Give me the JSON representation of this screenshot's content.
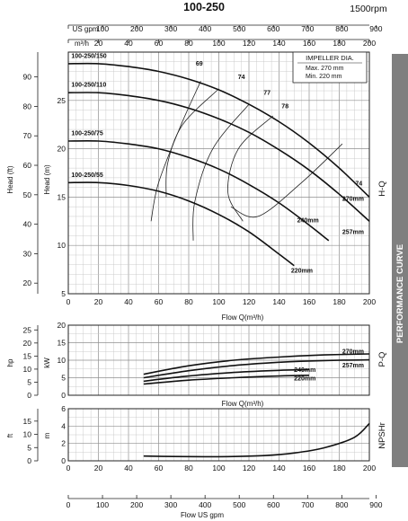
{
  "header": {
    "title": "100-250",
    "speed": "1500rpm"
  },
  "side": {
    "banner": "PERFORMANCE CURVE",
    "hq": "H-Q",
    "pq": "P-Q",
    "npshr": "NPSHr"
  },
  "impeller_box": {
    "title": "IMPELLER DIA.",
    "max": "Max.  270 mm",
    "min": "Min.  220 mm"
  },
  "chart_data": [
    {
      "type": "line",
      "title": "H-Q",
      "x": {
        "label": "Flow  Q(m³/h)",
        "range": [
          0,
          200
        ],
        "ticks": [
          0,
          20,
          40,
          60,
          80,
          100,
          120,
          140,
          160,
          180,
          200
        ]
      },
      "y": {
        "label": "Head (m)",
        "range": [
          5,
          30
        ],
        "ticks": [
          5,
          10,
          15,
          20,
          25
        ]
      },
      "series": [
        {
          "name": "270mm",
          "x": [
            0,
            20,
            40,
            60,
            80,
            100,
            120,
            140,
            160,
            180,
            200
          ],
          "y": [
            28.8,
            28.8,
            28.5,
            28.0,
            27.2,
            26.1,
            24.6,
            22.8,
            20.6,
            18.0,
            15.0
          ]
        },
        {
          "name": "257mm",
          "x": [
            0,
            20,
            40,
            60,
            80,
            100,
            120,
            140,
            160,
            180,
            200
          ],
          "y": [
            25.8,
            25.8,
            25.5,
            25.0,
            24.2,
            23.1,
            21.7,
            19.9,
            17.8,
            15.3,
            12.5
          ]
        },
        {
          "name": "240mm",
          "x": [
            0,
            20,
            40,
            60,
            80,
            100,
            120,
            140,
            160,
            173
          ],
          "y": [
            20.8,
            20.8,
            20.5,
            20.0,
            19.1,
            17.9,
            16.3,
            14.4,
            12.1,
            10.5
          ]
        },
        {
          "name": "220mm",
          "x": [
            0,
            20,
            40,
            60,
            80,
            100,
            120,
            140,
            150
          ],
          "y": [
            16.5,
            16.5,
            16.2,
            15.6,
            14.6,
            13.2,
            11.4,
            9.1,
            7.9
          ]
        }
      ],
      "curve_labels": [
        {
          "text": "100-250/150",
          "x": 2,
          "y": 29.4
        },
        {
          "text": "100-250/110",
          "x": 2,
          "y": 26.4
        },
        {
          "text": "100-250/75",
          "x": 2,
          "y": 21.4
        },
        {
          "text": "100-250/55",
          "x": 2,
          "y": 17.1
        },
        {
          "text": "270mm",
          "x": 182,
          "y": 14.6
        },
        {
          "text": "257mm",
          "x": 182,
          "y": 11.2
        },
        {
          "text": "240mm",
          "x": 152,
          "y": 12.4
        },
        {
          "text": "220mm",
          "x": 148,
          "y": 7.2
        }
      ],
      "efficiency_contours": [
        {
          "label": "69",
          "points": [
            [
              55,
              12.5
            ],
            [
              60,
              16.5
            ],
            [
              75,
              22.5
            ],
            [
              88,
              27
            ]
          ],
          "label_at": [
            87,
            28.6
          ]
        },
        {
          "label": "74",
          "points": [
            [
              65,
              15
            ],
            [
              66,
              18.5
            ],
            [
              76,
              22.5
            ],
            [
              100,
              26.2
            ]
          ],
          "label_at": [
            115,
            27.2
          ]
        },
        {
          "label": "77",
          "points": [
            [
              83,
              10.5
            ],
            [
              84,
              14.5
            ],
            [
              96,
              20
            ],
            [
              120,
              24.6
            ]
          ],
          "label_at": [
            132,
            25.6
          ]
        },
        {
          "label": "78",
          "points": [
            [
              116,
              12.5
            ],
            [
              106,
              15.5
            ],
            [
              113,
              20
            ],
            [
              136,
              23.4
            ]
          ],
          "label_at": [
            144,
            24.2
          ]
        },
        {
          "label": "74",
          "points": [
            [
              108,
              14
            ],
            [
              126,
              13
            ],
            [
              155,
              16.5
            ],
            [
              182,
              20.5
            ]
          ],
          "label_at": [
            193,
            16.2
          ]
        }
      ],
      "secondary_axes": {
        "head_ft": {
          "ticks": [
            20,
            30,
            40,
            50,
            60,
            70,
            80,
            90
          ]
        },
        "flow_m3h_top": {
          "ticks": [
            0,
            20,
            40,
            60,
            80,
            100,
            120,
            140,
            160,
            180,
            200
          ]
        },
        "flow_gpm_top": {
          "ticks": [
            0,
            100,
            200,
            300,
            400,
            500,
            600,
            700,
            800,
            900
          ]
        }
      }
    },
    {
      "type": "line",
      "title": "P-Q",
      "x": {
        "label": "Flow  Q(m³/h)",
        "range": [
          0,
          200
        ]
      },
      "y": {
        "label": "kW",
        "range": [
          0,
          20
        ],
        "ticks": [
          0,
          5,
          10,
          15,
          20
        ]
      },
      "secondary_y": {
        "label": "hp",
        "ticks": [
          0,
          5,
          10,
          15,
          20,
          25
        ]
      },
      "series": [
        {
          "name": "270mm",
          "x": [
            50,
            80,
            110,
            140,
            170,
            200
          ],
          "y": [
            6.0,
            8.4,
            10.0,
            10.9,
            11.5,
            11.8
          ]
        },
        {
          "name": "257mm",
          "x": [
            50,
            80,
            110,
            140,
            170,
            200
          ],
          "y": [
            5.0,
            7.0,
            8.5,
            9.4,
            9.9,
            10.1
          ]
        },
        {
          "name": "240mm",
          "x": [
            50,
            80,
            110,
            140,
            160
          ],
          "y": [
            4.0,
            5.5,
            6.5,
            7.1,
            7.3
          ]
        },
        {
          "name": "220mm",
          "x": [
            50,
            80,
            110,
            140,
            160
          ],
          "y": [
            3.2,
            4.3,
            5.0,
            5.5,
            5.7
          ]
        }
      ],
      "curve_labels": [
        {
          "text": "270mm",
          "x": 182,
          "y": 12.4
        },
        {
          "text": "257mm",
          "x": 182,
          "y": 8.4
        },
        {
          "text": "240mm",
          "x": 150,
          "y": 7.2
        },
        {
          "text": "220mm",
          "x": 150,
          "y": 4.8
        }
      ]
    },
    {
      "type": "line",
      "title": "NPSHr",
      "x": {
        "range": [
          0,
          200
        ]
      },
      "y": {
        "label": "m",
        "range": [
          0,
          6
        ],
        "ticks": [
          0,
          2,
          4,
          6
        ]
      },
      "secondary_y": {
        "label": "ft",
        "ticks": [
          0,
          5,
          10,
          15
        ]
      },
      "series": [
        {
          "name": "",
          "x": [
            50,
            70,
            90,
            110,
            130,
            150,
            170,
            190,
            200
          ],
          "y": [
            0.55,
            0.5,
            0.48,
            0.5,
            0.6,
            0.9,
            1.5,
            2.7,
            4.3
          ]
        }
      ]
    }
  ]
}
